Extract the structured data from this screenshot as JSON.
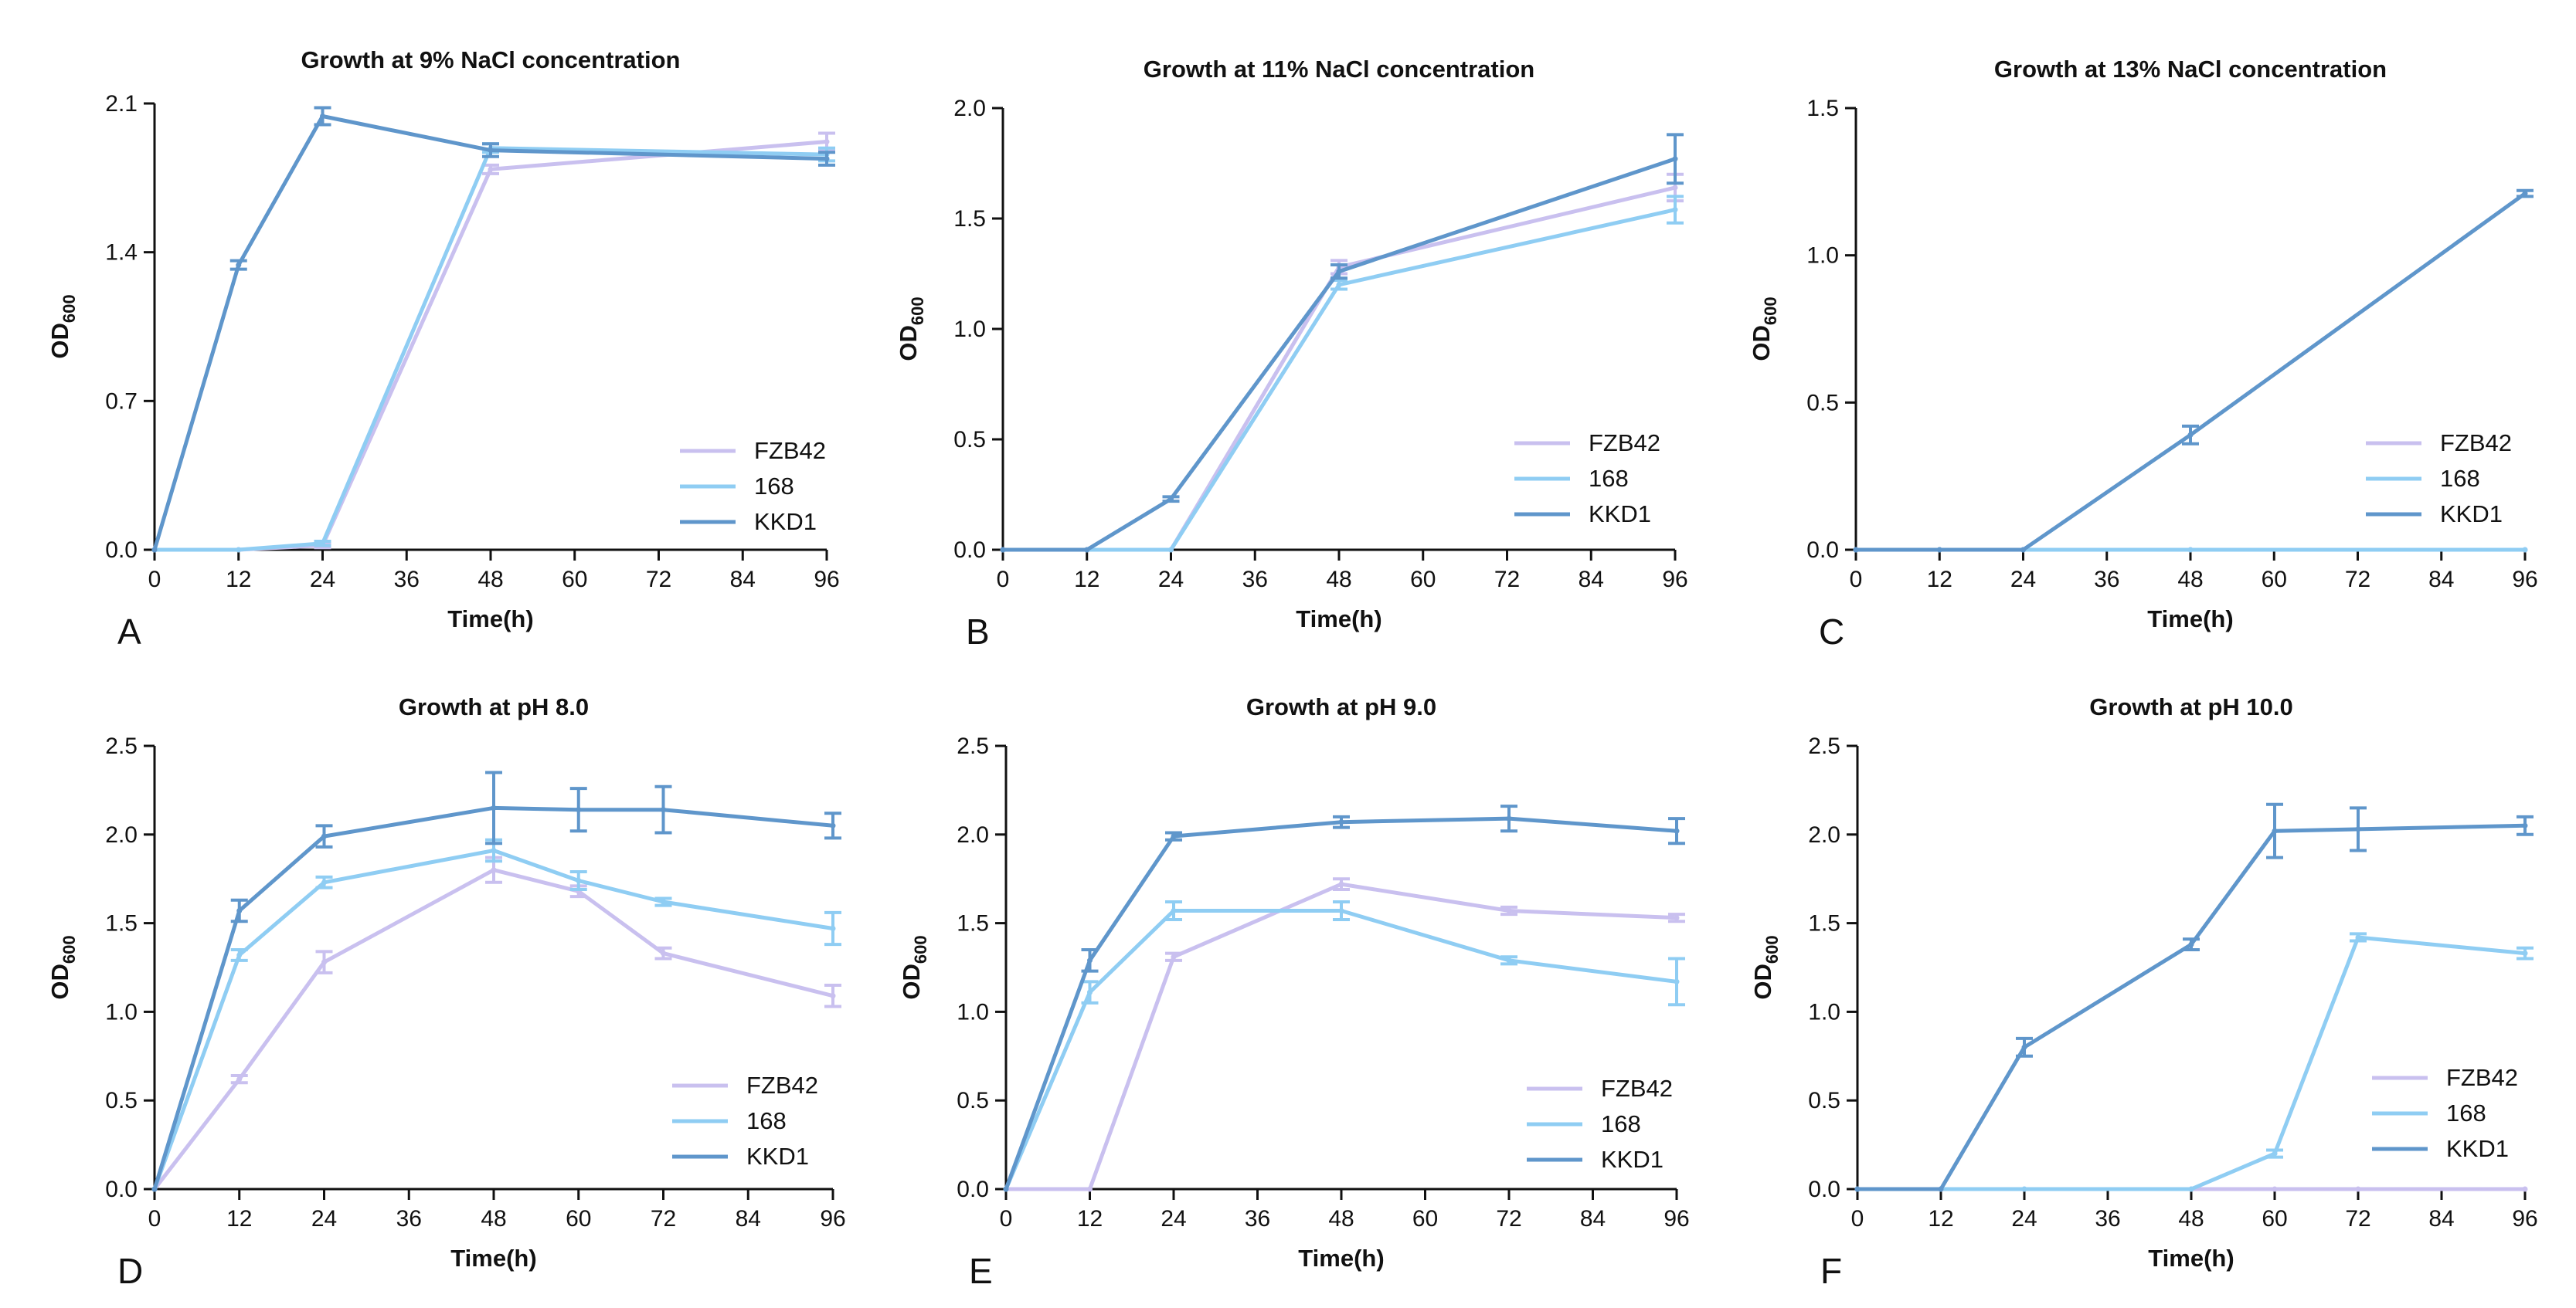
{
  "colors": {
    "FZB42": "#c9c0ef",
    "168": "#8fcdf3",
    "KKD1": "#5f96cb",
    "axis": "#111111"
  },
  "chart_data": [
    {
      "type": "line",
      "panel": "A",
      "title": "Growth at 9% NaCl concentration",
      "xlabel": "Time(h)",
      "ylabel": "OD",
      "ylabel_sub": "600",
      "xlim": [
        0,
        96
      ],
      "ylim": [
        0,
        2.1
      ],
      "xticks": [
        "0",
        "12",
        "24",
        "36",
        "48",
        "60",
        "72",
        "84",
        "96"
      ],
      "yticks": [
        "0.0",
        "0.7",
        "1.4",
        "2.1"
      ],
      "legend": [
        "FZB42",
        "168",
        "KKD1"
      ],
      "series": [
        {
          "name": "FZB42",
          "x": [
            0,
            12,
            24,
            48,
            96
          ],
          "y": [
            0.0,
            0.0,
            0.02,
            1.79,
            1.92
          ],
          "err": [
            0,
            0,
            0.01,
            0.02,
            0.04
          ]
        },
        {
          "name": "168",
          "x": [
            0,
            12,
            24,
            48,
            96
          ],
          "y": [
            0.0,
            0.0,
            0.03,
            1.89,
            1.86
          ],
          "err": [
            0,
            0,
            0.01,
            0.02,
            0.03
          ]
        },
        {
          "name": "KKD1",
          "x": [
            0,
            12,
            24,
            48,
            96
          ],
          "y": [
            0.0,
            1.34,
            2.04,
            1.88,
            1.84
          ],
          "err": [
            0,
            0.02,
            0.04,
            0.03,
            0.03
          ]
        }
      ]
    },
    {
      "type": "line",
      "panel": "B",
      "title": "Growth at 11% NaCl concentration",
      "xlabel": "Time(h)",
      "ylabel": "OD",
      "ylabel_sub": "600",
      "xlim": [
        0,
        96
      ],
      "ylim": [
        0,
        2.0
      ],
      "xticks": [
        "0",
        "12",
        "24",
        "36",
        "48",
        "60",
        "72",
        "84",
        "96"
      ],
      "yticks": [
        "0.0",
        "0.5",
        "1.0",
        "1.5",
        "2.0"
      ],
      "legend": [
        "FZB42",
        "168",
        "KKD1"
      ],
      "series": [
        {
          "name": "FZB42",
          "x": [
            0,
            12,
            24,
            48,
            96
          ],
          "y": [
            0.0,
            0.0,
            0.0,
            1.28,
            1.64
          ],
          "err": [
            0,
            0,
            0,
            0.03,
            0.06
          ]
        },
        {
          "name": "168",
          "x": [
            0,
            12,
            24,
            48,
            96
          ],
          "y": [
            0.0,
            0.0,
            0.0,
            1.2,
            1.54
          ],
          "err": [
            0,
            0,
            0,
            0.02,
            0.06
          ]
        },
        {
          "name": "KKD1",
          "x": [
            0,
            12,
            24,
            48,
            96
          ],
          "y": [
            0.0,
            0.0,
            0.23,
            1.26,
            1.77
          ],
          "err": [
            0,
            0,
            0.01,
            0.03,
            0.11
          ]
        }
      ]
    },
    {
      "type": "line",
      "panel": "C",
      "title": "Growth at 13% NaCl concentration",
      "xlabel": "Time(h)",
      "ylabel": "OD",
      "ylabel_sub": "600",
      "xlim": [
        0,
        96
      ],
      "ylim": [
        0,
        1.5
      ],
      "xticks": [
        "0",
        "12",
        "24",
        "36",
        "48",
        "60",
        "72",
        "84",
        "96"
      ],
      "yticks": [
        "0.0",
        "0.5",
        "1.0",
        "1.5"
      ],
      "legend": [
        "FZB42",
        "168",
        "KKD1"
      ],
      "series": [
        {
          "name": "FZB42",
          "x": [
            0,
            12,
            24,
            48,
            96
          ],
          "y": [
            0,
            0,
            0,
            0,
            0
          ],
          "err": [
            0,
            0,
            0,
            0,
            0
          ]
        },
        {
          "name": "168",
          "x": [
            0,
            12,
            24,
            48,
            96
          ],
          "y": [
            0,
            0,
            0,
            0,
            0
          ],
          "err": [
            0,
            0,
            0,
            0,
            0
          ]
        },
        {
          "name": "KKD1",
          "x": [
            0,
            12,
            24,
            48,
            96
          ],
          "y": [
            0.0,
            0.0,
            0.0,
            0.39,
            1.21
          ],
          "err": [
            0,
            0,
            0,
            0.03,
            0.01
          ]
        }
      ]
    },
    {
      "type": "line",
      "panel": "D",
      "title": "Growth at pH 8.0",
      "xlabel": "Time(h)",
      "ylabel": "OD",
      "ylabel_sub": "600",
      "xlim": [
        0,
        96
      ],
      "ylim": [
        0,
        2.5
      ],
      "xticks": [
        "0",
        "12",
        "24",
        "36",
        "48",
        "60",
        "72",
        "84",
        "96"
      ],
      "yticks": [
        "0.0",
        "0.5",
        "1.0",
        "1.5",
        "2.0",
        "2.5"
      ],
      "legend": [
        "FZB42",
        "168",
        "KKD1"
      ],
      "series": [
        {
          "name": "FZB42",
          "x": [
            0,
            12,
            24,
            48,
            60,
            72,
            96
          ],
          "y": [
            0.0,
            0.62,
            1.28,
            1.8,
            1.68,
            1.33,
            1.09
          ],
          "err": [
            0,
            0.02,
            0.06,
            0.07,
            0.03,
            0.03,
            0.06
          ]
        },
        {
          "name": "168",
          "x": [
            0,
            12,
            24,
            48,
            60,
            72,
            96
          ],
          "y": [
            0.0,
            1.32,
            1.73,
            1.91,
            1.74,
            1.62,
            1.47
          ],
          "err": [
            0,
            0.03,
            0.03,
            0.06,
            0.05,
            0.02,
            0.09
          ]
        },
        {
          "name": "KKD1",
          "x": [
            0,
            12,
            24,
            48,
            60,
            72,
            96
          ],
          "y": [
            0.0,
            1.57,
            1.99,
            2.15,
            2.14,
            2.14,
            2.05
          ],
          "err": [
            0,
            0.06,
            0.06,
            0.2,
            0.12,
            0.13,
            0.07
          ]
        }
      ]
    },
    {
      "type": "line",
      "panel": "E",
      "title": "Growth at pH 9.0",
      "xlabel": "Time(h)",
      "ylabel": "OD",
      "ylabel_sub": "600",
      "xlim": [
        0,
        96
      ],
      "ylim": [
        0,
        2.5
      ],
      "xticks": [
        "0",
        "12",
        "24",
        "36",
        "48",
        "60",
        "72",
        "84",
        "96"
      ],
      "yticks": [
        "0.0",
        "0.5",
        "1.0",
        "1.5",
        "2.0",
        "2.5"
      ],
      "legend": [
        "FZB42",
        "168",
        "KKD1"
      ],
      "series": [
        {
          "name": "FZB42",
          "x": [
            0,
            12,
            24,
            48,
            72,
            96
          ],
          "y": [
            0.0,
            0.0,
            1.31,
            1.72,
            1.57,
            1.53
          ],
          "err": [
            0,
            0,
            0.02,
            0.03,
            0.02,
            0.02
          ]
        },
        {
          "name": "168",
          "x": [
            0,
            12,
            24,
            48,
            72,
            96
          ],
          "y": [
            0.0,
            1.11,
            1.57,
            1.57,
            1.29,
            1.17
          ],
          "err": [
            0,
            0.06,
            0.05,
            0.05,
            0.02,
            0.13
          ]
        },
        {
          "name": "KKD1",
          "x": [
            0,
            12,
            24,
            48,
            72,
            96
          ],
          "y": [
            0.0,
            1.29,
            1.99,
            2.07,
            2.09,
            2.02
          ],
          "err": [
            0,
            0.06,
            0.02,
            0.03,
            0.07,
            0.07
          ]
        }
      ]
    },
    {
      "type": "line",
      "panel": "F",
      "title": "Growth at pH 10.0",
      "xlabel": "Time(h)",
      "ylabel": "OD",
      "ylabel_sub": "600",
      "xlim": [
        0,
        96
      ],
      "ylim": [
        0,
        2.5
      ],
      "xticks": [
        "0",
        "12",
        "24",
        "36",
        "48",
        "60",
        "72",
        "84",
        "96"
      ],
      "yticks": [
        "0.0",
        "0.5",
        "1.0",
        "1.5",
        "2.0",
        "2.5"
      ],
      "legend": [
        "FZB42",
        "168",
        "KKD1"
      ],
      "series": [
        {
          "name": "FZB42",
          "x": [
            0,
            12,
            24,
            48,
            60,
            72,
            96
          ],
          "y": [
            0,
            0,
            0,
            0,
            0,
            0,
            0
          ],
          "err": [
            0,
            0,
            0,
            0,
            0,
            0,
            0
          ]
        },
        {
          "name": "168",
          "x": [
            0,
            12,
            24,
            48,
            60,
            72,
            96
          ],
          "y": [
            0.0,
            0.0,
            0.0,
            0.0,
            0.2,
            1.42,
            1.33
          ],
          "err": [
            0,
            0,
            0,
            0,
            0.02,
            0.02,
            0.03
          ]
        },
        {
          "name": "KKD1",
          "x": [
            0,
            12,
            24,
            48,
            60,
            72,
            96
          ],
          "y": [
            0.0,
            0.0,
            0.8,
            1.38,
            2.02,
            2.03,
            2.05
          ],
          "err": [
            0,
            0,
            0.05,
            0.03,
            0.15,
            0.12,
            0.05
          ]
        }
      ]
    }
  ]
}
